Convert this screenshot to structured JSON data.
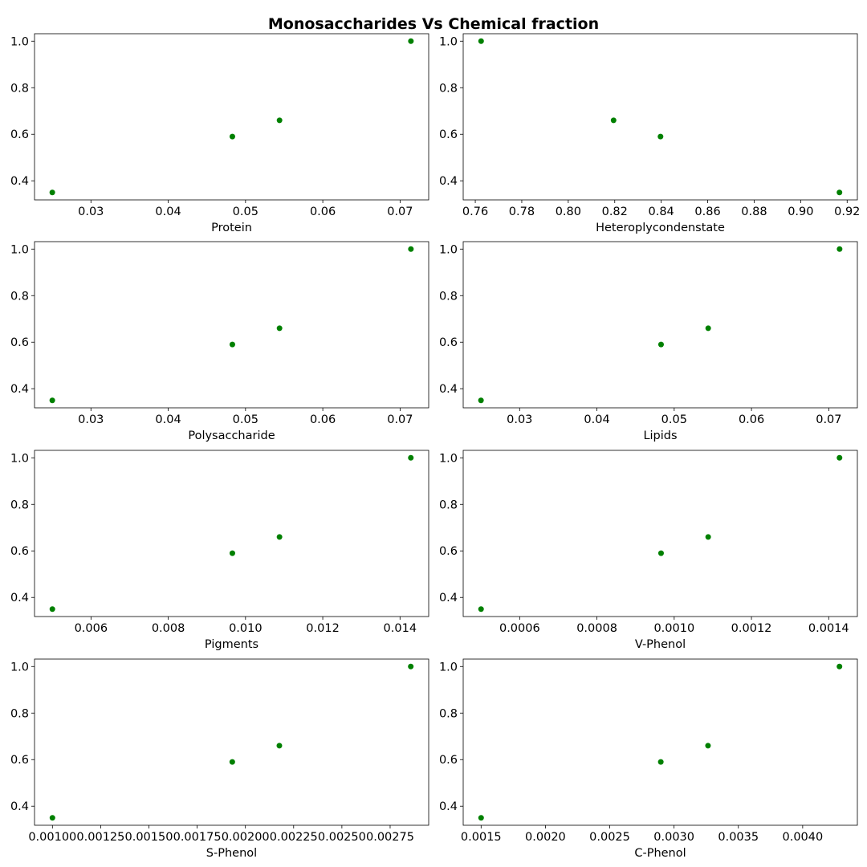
{
  "figure_title": "Monosaccharides Vs Chemical fraction",
  "point_color": "#008000",
  "chart_data": [
    {
      "type": "scatter",
      "xlabel": "Protein",
      "ylabel": "",
      "x": [
        0.025,
        0.0483,
        0.0544,
        0.0714
      ],
      "y": [
        0.35,
        0.59,
        0.66,
        1.0
      ],
      "xlim": [
        0.0227,
        0.0737
      ],
      "ylim": [
        0.318,
        1.032
      ],
      "xticks": [
        0.03,
        0.04,
        0.05,
        0.06,
        0.07
      ],
      "xtick_labels": [
        "0.03",
        "0.04",
        "0.05",
        "0.06",
        "0.07"
      ],
      "yticks": [
        0.4,
        0.6,
        0.8,
        1.0
      ],
      "ytick_labels": [
        "0.4",
        "0.6",
        "0.8",
        "1.0"
      ]
    },
    {
      "type": "scatter",
      "xlabel": "Heteroplycondenstate",
      "ylabel": "",
      "x": [
        0.7625,
        0.8195,
        0.8397,
        0.9167
      ],
      "y": [
        1.0,
        0.66,
        0.59,
        0.35
      ],
      "xlim": [
        0.7548,
        0.9244
      ],
      "ylim": [
        0.318,
        1.032
      ],
      "xticks": [
        0.76,
        0.78,
        0.8,
        0.82,
        0.84,
        0.86,
        0.88,
        0.9,
        0.92
      ],
      "xtick_labels": [
        "0.76",
        "0.78",
        "0.80",
        "0.82",
        "0.84",
        "0.86",
        "0.88",
        "0.90",
        "0.92"
      ],
      "yticks": [
        0.4,
        0.6,
        0.8,
        1.0
      ],
      "ytick_labels": [
        "0.4",
        "0.6",
        "0.8",
        "1.0"
      ]
    },
    {
      "type": "scatter",
      "xlabel": "Polysaccharide",
      "ylabel": "",
      "x": [
        0.025,
        0.0483,
        0.0544,
        0.0714
      ],
      "y": [
        0.35,
        0.59,
        0.66,
        1.0
      ],
      "xlim": [
        0.0227,
        0.0737
      ],
      "ylim": [
        0.318,
        1.032
      ],
      "xticks": [
        0.03,
        0.04,
        0.05,
        0.06,
        0.07
      ],
      "xtick_labels": [
        "0.03",
        "0.04",
        "0.05",
        "0.06",
        "0.07"
      ],
      "yticks": [
        0.4,
        0.6,
        0.8,
        1.0
      ],
      "ytick_labels": [
        "0.4",
        "0.6",
        "0.8",
        "1.0"
      ]
    },
    {
      "type": "scatter",
      "xlabel": "Lipids",
      "ylabel": "",
      "x": [
        0.025,
        0.0483,
        0.0544,
        0.0714
      ],
      "y": [
        0.35,
        0.59,
        0.66,
        1.0
      ],
      "xlim": [
        0.0227,
        0.0737
      ],
      "ylim": [
        0.318,
        1.032
      ],
      "xticks": [
        0.03,
        0.04,
        0.05,
        0.06,
        0.07
      ],
      "xtick_labels": [
        "0.03",
        "0.04",
        "0.05",
        "0.06",
        "0.07"
      ],
      "yticks": [
        0.4,
        0.6,
        0.8,
        1.0
      ],
      "ytick_labels": [
        "0.4",
        "0.6",
        "0.8",
        "1.0"
      ]
    },
    {
      "type": "scatter",
      "xlabel": "Pigments",
      "ylabel": "",
      "x": [
        0.005,
        0.00966,
        0.01088,
        0.01428
      ],
      "y": [
        0.35,
        0.59,
        0.66,
        1.0
      ],
      "xlim": [
        0.004538,
        0.014742
      ],
      "ylim": [
        0.318,
        1.032
      ],
      "xticks": [
        0.006,
        0.008,
        0.01,
        0.012,
        0.014
      ],
      "xtick_labels": [
        "0.006",
        "0.008",
        "0.010",
        "0.012",
        "0.014"
      ],
      "yticks": [
        0.4,
        0.6,
        0.8,
        1.0
      ],
      "ytick_labels": [
        "0.4",
        "0.6",
        "0.8",
        "1.0"
      ]
    },
    {
      "type": "scatter",
      "xlabel": "V-Phenol",
      "ylabel": "",
      "x": [
        0.0005,
        0.000966,
        0.001088,
        0.001428
      ],
      "y": [
        0.35,
        0.59,
        0.66,
        1.0
      ],
      "xlim": [
        0.0004538,
        0.0014742
      ],
      "ylim": [
        0.318,
        1.032
      ],
      "xticks": [
        0.0006,
        0.0008,
        0.001,
        0.0012,
        0.0014
      ],
      "xtick_labels": [
        "0.0006",
        "0.0008",
        "0.0010",
        "0.0012",
        "0.0014"
      ],
      "yticks": [
        0.4,
        0.6,
        0.8,
        1.0
      ],
      "ytick_labels": [
        "0.4",
        "0.6",
        "0.8",
        "1.0"
      ]
    },
    {
      "type": "scatter",
      "xlabel": "S-Phenol",
      "ylabel": "",
      "x": [
        0.001,
        0.001932,
        0.002176,
        0.002857
      ],
      "y": [
        0.35,
        0.59,
        0.66,
        1.0
      ],
      "xlim": [
        0.0009072,
        0.0029498
      ],
      "ylim": [
        0.318,
        1.032
      ],
      "xticks": [
        0.001,
        0.00125,
        0.0015,
        0.00175,
        0.002,
        0.00225,
        0.0025,
        0.00275
      ],
      "xtick_labels": [
        "0.00100",
        "0.00125",
        "0.00150",
        "0.00175",
        "0.00200",
        "0.00225",
        "0.00250",
        "0.00275"
      ],
      "yticks": [
        0.4,
        0.6,
        0.8,
        1.0
      ],
      "ytick_labels": [
        "0.4",
        "0.6",
        "0.8",
        "1.0"
      ]
    },
    {
      "type": "scatter",
      "xlabel": "C-Phenol",
      "ylabel": "",
      "x": [
        0.0015,
        0.002897,
        0.003264,
        0.004286
      ],
      "y": [
        0.35,
        0.59,
        0.66,
        1.0
      ],
      "xlim": [
        0.0013608,
        0.0044252
      ],
      "ylim": [
        0.318,
        1.032
      ],
      "xticks": [
        0.0015,
        0.002,
        0.0025,
        0.003,
        0.0035,
        0.004
      ],
      "xtick_labels": [
        "0.0015",
        "0.0020",
        "0.0025",
        "0.0030",
        "0.0035",
        "0.0040"
      ],
      "yticks": [
        0.4,
        0.6,
        0.8,
        1.0
      ],
      "ytick_labels": [
        "0.4",
        "0.6",
        "0.8",
        "1.0"
      ]
    }
  ]
}
